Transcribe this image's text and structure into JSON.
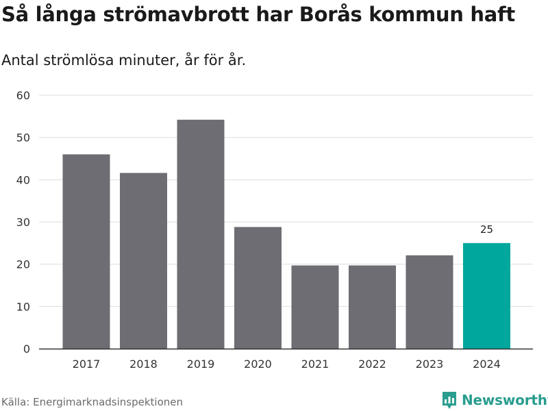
{
  "title": "Så långa strömavbrott har Borås kommun haft",
  "subtitle": "Antal strömlösa minuter, år för år.",
  "source": "Källa: Energimarknadsinspektionen",
  "brand": {
    "name": "Newsworthy"
  },
  "colors": {
    "bar": "#6e6d73",
    "highlight": "#00a79d",
    "grid": "#dddddd",
    "axis": "#333333",
    "brand": "#2a9d8f"
  },
  "chart_data": {
    "type": "bar",
    "title": "Så långa strömavbrott har Borås kommun haft",
    "subtitle": "Antal strömlösa minuter, år för år.",
    "xlabel": "",
    "ylabel": "",
    "categories": [
      "2017",
      "2018",
      "2019",
      "2020",
      "2021",
      "2022",
      "2023",
      "2024"
    ],
    "values": [
      46,
      41.6,
      54.2,
      28.8,
      19.7,
      19.7,
      22.1,
      25
    ],
    "highlight_index": 7,
    "data_labels": [
      {
        "index": 7,
        "text": "25"
      }
    ],
    "ylim": [
      0,
      60
    ],
    "yticks": [
      0,
      10,
      20,
      30,
      40,
      50,
      60
    ],
    "grid": true,
    "legend": "none"
  }
}
